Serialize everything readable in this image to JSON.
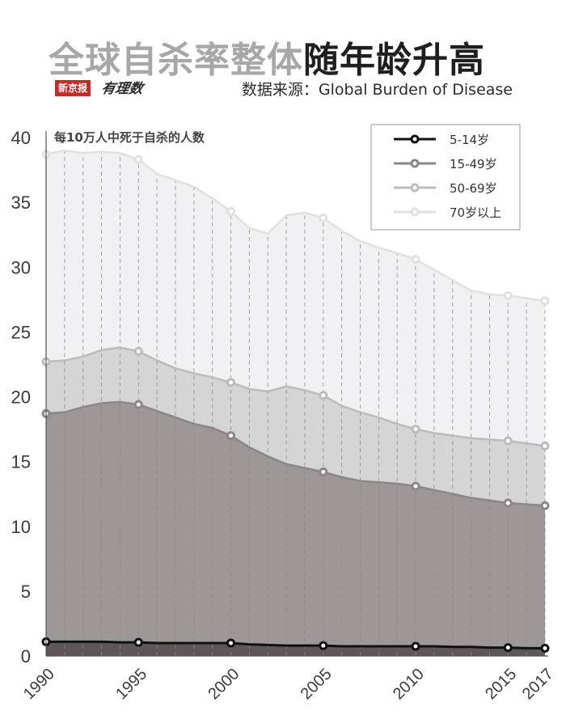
{
  "header": {
    "title_part1": "全球自杀率整体",
    "title_part2": "随年龄升高",
    "brand_name": "新京报",
    "brand_column": "有理数",
    "source": "数据来源：Global Burden of Disease"
  },
  "chart_data": {
    "type": "area",
    "ylabel": "每10万人中死于自杀的人数",
    "ylim": [
      0,
      40
    ],
    "yticks": [
      0,
      5,
      10,
      15,
      20,
      25,
      30,
      35,
      40
    ],
    "xlim": [
      1990,
      2017
    ],
    "xticks": [
      1990,
      1995,
      2000,
      2005,
      2010,
      2015,
      2017
    ],
    "x": [
      1990,
      1991,
      1992,
      1993,
      1994,
      1995,
      1996,
      1997,
      1998,
      1999,
      2000,
      2001,
      2002,
      2003,
      2004,
      2005,
      2006,
      2007,
      2008,
      2009,
      2010,
      2011,
      2012,
      2013,
      2014,
      2015,
      2016,
      2017
    ],
    "marker_years": [
      1990,
      1995,
      2000,
      2005,
      2010,
      2015,
      2017
    ],
    "legend_position": "top-right",
    "series": [
      {
        "name": "5-14岁",
        "line_color": "#111111",
        "fill_color": "#5e5657",
        "values": [
          1.1,
          1.1,
          1.1,
          1.1,
          1.05,
          1.05,
          1.0,
          1.0,
          1.0,
          1.0,
          1.0,
          0.9,
          0.85,
          0.8,
          0.8,
          0.8,
          0.75,
          0.75,
          0.75,
          0.75,
          0.75,
          0.75,
          0.7,
          0.7,
          0.65,
          0.65,
          0.6,
          0.6
        ]
      },
      {
        "name": "15-49岁",
        "line_color": "#8c8687",
        "fill_color": "#9d9798",
        "values": [
          18.7,
          18.8,
          19.2,
          19.5,
          19.6,
          19.4,
          18.9,
          18.4,
          17.9,
          17.6,
          17.0,
          16.1,
          15.4,
          14.8,
          14.5,
          14.2,
          13.8,
          13.5,
          13.4,
          13.3,
          13.1,
          12.8,
          12.5,
          12.2,
          12.0,
          11.8,
          11.7,
          11.6
        ]
      },
      {
        "name": "50-69岁",
        "line_color": "#bcbcbc",
        "fill_color": "#d5d5d5",
        "values": [
          22.7,
          22.8,
          23.1,
          23.6,
          23.8,
          23.5,
          22.8,
          22.2,
          21.8,
          21.5,
          21.1,
          20.6,
          20.4,
          20.8,
          20.5,
          20.1,
          19.3,
          18.8,
          18.4,
          17.9,
          17.5,
          17.2,
          17.0,
          16.8,
          16.7,
          16.6,
          16.4,
          16.2
        ]
      },
      {
        "name": "70岁以上",
        "line_color": "#e1e1e1",
        "fill_color": "#f1f0f2",
        "values": [
          38.7,
          39.0,
          38.8,
          38.9,
          38.8,
          38.3,
          37.2,
          36.7,
          36.2,
          35.3,
          34.3,
          33.0,
          32.6,
          34.0,
          34.2,
          33.8,
          32.8,
          32.0,
          31.5,
          31.1,
          30.6,
          29.8,
          29.0,
          28.2,
          27.9,
          27.8,
          27.6,
          27.4
        ]
      }
    ]
  }
}
